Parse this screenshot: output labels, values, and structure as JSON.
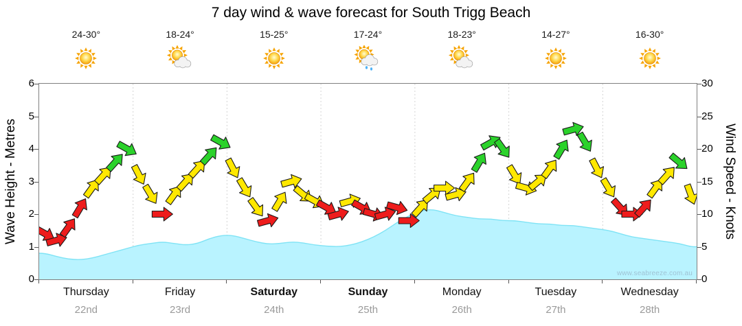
{
  "title": "7 day wind & wave forecast for South Trigg Beach",
  "watermark": "www.seabreeze.com.au",
  "y_left": {
    "label": "Wave Height - Metres",
    "min": 0,
    "max": 6,
    "ticks": [
      0,
      1,
      2,
      3,
      4,
      5,
      6
    ]
  },
  "y_right": {
    "label": "Wind Speed - Knots",
    "min": 0,
    "max": 30,
    "ticks": [
      0,
      5,
      10,
      15,
      20,
      25,
      30
    ]
  },
  "days": [
    {
      "name": "Thursday",
      "date": "22nd",
      "temp": "24-30°",
      "icon": "sunny",
      "bold": false
    },
    {
      "name": "Friday",
      "date": "23rd",
      "temp": "18-24°",
      "icon": "partly-cloudy",
      "bold": false
    },
    {
      "name": "Saturday",
      "date": "24th",
      "temp": "15-25°",
      "icon": "sunny",
      "bold": true
    },
    {
      "name": "Sunday",
      "date": "25th",
      "temp": "17-24°",
      "icon": "showers",
      "bold": true
    },
    {
      "name": "Monday",
      "date": "26th",
      "temp": "18-23°",
      "icon": "partly-cloudy",
      "bold": false
    },
    {
      "name": "Tuesday",
      "date": "27th",
      "temp": "14-27°",
      "icon": "sunny",
      "bold": false
    },
    {
      "name": "Wednesday",
      "date": "28th",
      "temp": "16-30°",
      "icon": "sunny",
      "bold": false
    }
  ],
  "chart_data": {
    "type": "line",
    "title": "7 day wind & wave forecast for South Trigg Beach",
    "points_per_day": 8,
    "x_categories": [
      "Thursday 22nd",
      "Friday 23rd",
      "Saturday 24th",
      "Sunday 25th",
      "Monday 26th",
      "Tuesday 27th",
      "Wednesday 28th"
    ],
    "ylabel_left": "Wave Height - Metres",
    "ylabel_right": "Wind Speed - Knots",
    "ylim_left": [
      0,
      6
    ],
    "ylim_right": [
      0,
      30
    ],
    "series": [
      {
        "name": "Wind Speed (knots)",
        "axis": "right",
        "values": [
          7,
          6,
          8,
          11,
          14,
          16,
          18,
          20,
          16,
          13,
          10,
          13,
          15,
          17,
          19,
          21,
          17,
          14,
          11,
          9,
          12,
          15,
          13,
          12,
          11,
          10,
          12,
          11,
          10,
          10,
          11,
          9,
          11,
          13,
          14,
          13,
          15,
          18,
          21,
          20,
          16,
          14,
          15,
          17,
          20,
          23,
          21,
          17,
          14,
          11,
          10,
          11,
          14,
          16,
          18,
          13
        ]
      },
      {
        "name": "Wave Height (m)",
        "axis": "left",
        "values": [
          0.8,
          0.7,
          0.62,
          0.6,
          0.65,
          0.75,
          0.85,
          0.95,
          1.05,
          1.1,
          1.15,
          1.1,
          1.05,
          1.1,
          1.25,
          1.35,
          1.35,
          1.25,
          1.15,
          1.08,
          1.1,
          1.15,
          1.12,
          1.05,
          1.02,
          1.0,
          1.05,
          1.15,
          1.3,
          1.5,
          1.75,
          1.95,
          2.1,
          2.15,
          2.05,
          1.95,
          1.9,
          1.85,
          1.85,
          1.8,
          1.8,
          1.75,
          1.7,
          1.7,
          1.65,
          1.65,
          1.6,
          1.55,
          1.5,
          1.4,
          1.3,
          1.25,
          1.2,
          1.15,
          1.1,
          1.0
        ]
      }
    ],
    "wind_colors": [
      "red",
      "red",
      "red",
      "red",
      "yellow",
      "yellow",
      "green",
      "green",
      "yellow",
      "yellow",
      "red",
      "yellow",
      "yellow",
      "yellow",
      "green",
      "green",
      "yellow",
      "yellow",
      "yellow",
      "red",
      "yellow",
      "yellow",
      "yellow",
      "yellow",
      "red",
      "red",
      "yellow",
      "red",
      "red",
      "red",
      "red",
      "red",
      "yellow",
      "yellow",
      "yellow",
      "yellow",
      "yellow",
      "green",
      "green",
      "green",
      "yellow",
      "yellow",
      "yellow",
      "yellow",
      "green",
      "green",
      "green",
      "yellow",
      "yellow",
      "red",
      "red",
      "red",
      "yellow",
      "yellow",
      "green",
      "yellow"
    ],
    "palette": {
      "red": "#ee1c1c",
      "yellow": "#ffe800",
      "green": "#2bd22b",
      "wave_fill": "#b9f3ff",
      "wave_stroke": "#7fe3f5",
      "grid": "#d4d4d4",
      "arrow_outline": "#1a1a1a"
    },
    "legend_position": "none",
    "grid": "vertical-day-boundaries"
  }
}
